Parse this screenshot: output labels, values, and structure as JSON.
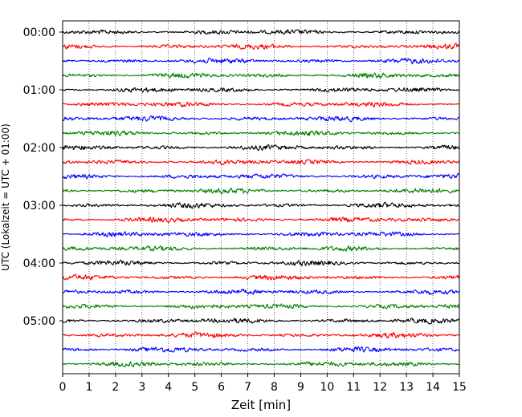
{
  "chart_data": {
    "type": "line",
    "title": "",
    "xlabel": "Zeit  [min]",
    "ylabel": "UTC (Lokalzeit = UTC + 01:00)",
    "xlim": [
      0,
      15
    ],
    "x_ticks": [
      "0",
      "1",
      "2",
      "3",
      "4",
      "5",
      "6",
      "7",
      "8",
      "9",
      "10",
      "11",
      "12",
      "13",
      "14",
      "15"
    ],
    "y_tick_labels": [
      "00:00",
      "01:00",
      "02:00",
      "03:00",
      "04:00",
      "05:00"
    ],
    "traces_per_hour": 4,
    "trace_minutes": 15,
    "trace_count": 24,
    "grid": "vertical dotted lines at each minute",
    "legend": "none",
    "color_cycle": [
      "#000000",
      "#ff0000",
      "#0000ff",
      "#008000"
    ]
  }
}
